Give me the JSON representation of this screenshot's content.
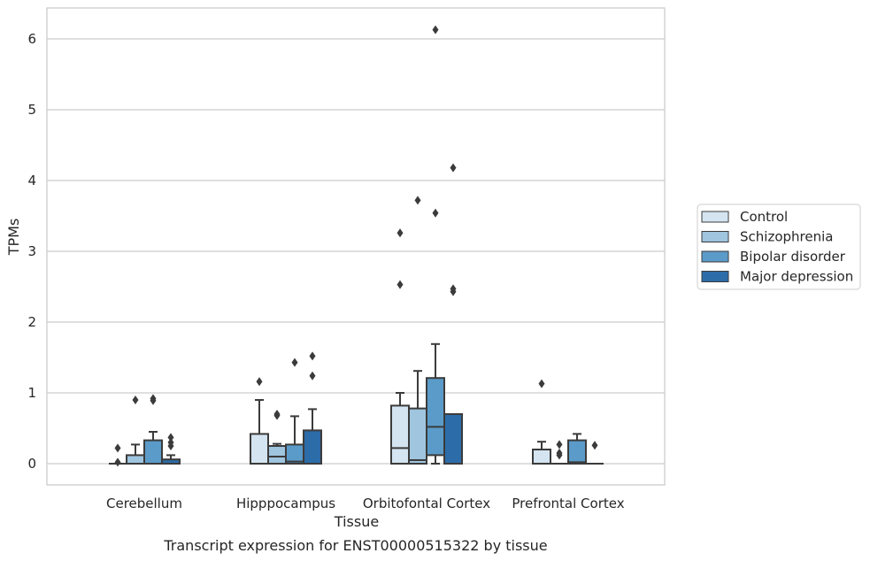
{
  "chart_data": {
    "type": "box",
    "caption": "Transcript expression for ENST00000515322 by tissue",
    "xlabel": "Tissue",
    "ylabel": "TPMs",
    "ylim": [
      -0.3,
      6.45
    ],
    "yticks": [
      0,
      1,
      2,
      3,
      4,
      5,
      6
    ],
    "grid": "horizontal",
    "legend_position": "right",
    "categories": [
      "Cerebellum",
      "Hipppocampus",
      "Orbitofontal Cortex",
      "Prefrontal Cortex"
    ],
    "series": [
      {
        "name": "Control",
        "color": "#d4e4f1",
        "boxes": [
          {
            "q1": 0,
            "median": 0,
            "q3": 0,
            "whisker_low": 0,
            "whisker_high": 0,
            "outliers": [
              0.22,
              0.02
            ]
          },
          {
            "q1": 0,
            "median": 0,
            "q3": 0.42,
            "whisker_low": 0,
            "whisker_high": 0.9,
            "outliers": [
              1.16
            ]
          },
          {
            "q1": 0,
            "median": 0.22,
            "q3": 0.82,
            "whisker_low": 0,
            "whisker_high": 1.0,
            "outliers": [
              2.53,
              3.26
            ]
          },
          {
            "q1": 0,
            "median": 0,
            "q3": 0.2,
            "whisker_low": 0,
            "whisker_high": 0.31,
            "outliers": [
              1.13
            ]
          }
        ]
      },
      {
        "name": "Schizophrenia",
        "color": "#9fc5df",
        "boxes": [
          {
            "q1": 0,
            "median": 0,
            "q3": 0.12,
            "whisker_low": 0,
            "whisker_high": 0.27,
            "outliers": [
              0.9
            ]
          },
          {
            "q1": 0,
            "median": 0.1,
            "q3": 0.25,
            "whisker_low": 0,
            "whisker_high": 0.28,
            "outliers": [
              0.68,
              0.7
            ]
          },
          {
            "q1": 0,
            "median": 0.05,
            "q3": 0.78,
            "whisker_low": 0,
            "whisker_high": 1.31,
            "outliers": [
              3.72
            ]
          },
          {
            "q1": 0,
            "median": 0,
            "q3": 0,
            "whisker_low": 0,
            "whisker_high": 0,
            "outliers": [
              0.27,
              0.15,
              0.12
            ]
          }
        ]
      },
      {
        "name": "Bipolar disorder",
        "color": "#5b9bc9",
        "boxes": [
          {
            "q1": 0,
            "median": 0,
            "q3": 0.33,
            "whisker_low": 0,
            "whisker_high": 0.45,
            "outliers": [
              0.92,
              0.89
            ]
          },
          {
            "q1": 0,
            "median": 0.03,
            "q3": 0.27,
            "whisker_low": 0,
            "whisker_high": 0.67,
            "outliers": [
              1.43
            ]
          },
          {
            "q1": 0.12,
            "median": 0.52,
            "q3": 1.21,
            "whisker_low": 0,
            "whisker_high": 1.69,
            "outliers": [
              3.54,
              6.13
            ]
          },
          {
            "q1": 0,
            "median": 0.02,
            "q3": 0.33,
            "whisker_low": 0,
            "whisker_high": 0.42,
            "outliers": []
          }
        ]
      },
      {
        "name": "Major depression",
        "color": "#2c6ca9",
        "boxes": [
          {
            "q1": 0,
            "median": 0,
            "q3": 0.06,
            "whisker_low": 0,
            "whisker_high": 0.12,
            "outliers": [
              0.37,
              0.3,
              0.25
            ]
          },
          {
            "q1": 0,
            "median": 0,
            "q3": 0.47,
            "whisker_low": 0,
            "whisker_high": 0.77,
            "outliers": [
              1.24,
              1.52
            ]
          },
          {
            "q1": 0,
            "median": 0,
            "q3": 0.7,
            "whisker_low": 0,
            "whisker_high": 0.7,
            "outliers": [
              2.43,
              2.47,
              4.18
            ]
          },
          {
            "q1": 0,
            "median": 0,
            "q3": 0,
            "whisker_low": 0,
            "whisker_high": 0,
            "outliers": [
              0.26
            ]
          }
        ]
      }
    ]
  }
}
